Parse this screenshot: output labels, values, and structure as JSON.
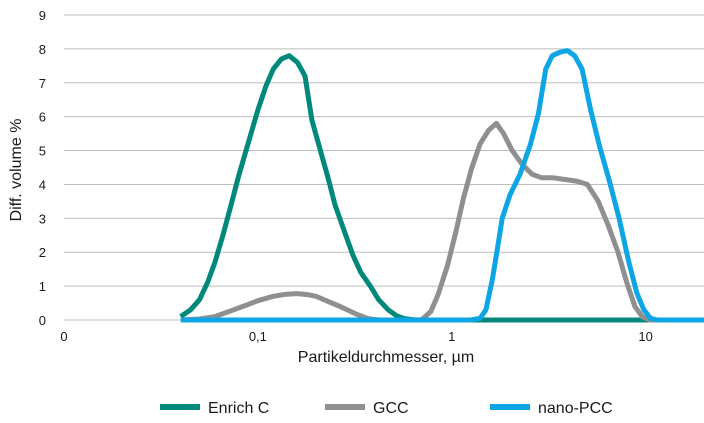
{
  "chart_data": {
    "type": "line",
    "xlabel": "Partikeldurchmesser, µm",
    "ylabel": "Diff. volume %",
    "x_scale": "log",
    "xlim": [
      0.01,
      20
    ],
    "ylim": [
      0,
      9
    ],
    "grid": "horizontal",
    "legend_position": "bottom",
    "x_ticks": [
      {
        "value": 0.01,
        "label": "0"
      },
      {
        "value": 0.1,
        "label": "0,1"
      },
      {
        "value": 1,
        "label": "1"
      },
      {
        "value": 10,
        "label": "10"
      }
    ],
    "y_ticks": [
      {
        "value": 0,
        "label": "0"
      },
      {
        "value": 1,
        "label": "1"
      },
      {
        "value": 2,
        "label": "2"
      },
      {
        "value": 3,
        "label": "3"
      },
      {
        "value": 4,
        "label": "4"
      },
      {
        "value": 5,
        "label": "5"
      },
      {
        "value": 6,
        "label": "6"
      },
      {
        "value": 7,
        "label": "7"
      },
      {
        "value": 8,
        "label": "8"
      },
      {
        "value": 9,
        "label": "9"
      }
    ],
    "series": [
      {
        "name": "Enrich C",
        "color": "#00897b",
        "points": [
          [
            0.04,
            0.1
          ],
          [
            0.045,
            0.3
          ],
          [
            0.05,
            0.6
          ],
          [
            0.055,
            1.1
          ],
          [
            0.06,
            1.7
          ],
          [
            0.066,
            2.5
          ],
          [
            0.072,
            3.3
          ],
          [
            0.08,
            4.3
          ],
          [
            0.09,
            5.3
          ],
          [
            0.1,
            6.2
          ],
          [
            0.11,
            6.9
          ],
          [
            0.12,
            7.4
          ],
          [
            0.132,
            7.7
          ],
          [
            0.145,
            7.8
          ],
          [
            0.16,
            7.6
          ],
          [
            0.175,
            7.2
          ],
          [
            0.19,
            5.9
          ],
          [
            0.21,
            5.0
          ],
          [
            0.23,
            4.2
          ],
          [
            0.25,
            3.4
          ],
          [
            0.28,
            2.6
          ],
          [
            0.31,
            1.9
          ],
          [
            0.34,
            1.4
          ],
          [
            0.38,
            1.0
          ],
          [
            0.42,
            0.6
          ],
          [
            0.47,
            0.3
          ],
          [
            0.52,
            0.12
          ],
          [
            0.57,
            0.04
          ],
          [
            0.65,
            0
          ],
          [
            0.8,
            0
          ],
          [
            1.0,
            0
          ],
          [
            2.0,
            0
          ],
          [
            5.0,
            0
          ],
          [
            10.0,
            0
          ],
          [
            20.0,
            0
          ]
        ]
      },
      {
        "name": "GCC",
        "color": "#8f8f8f",
        "points": [
          [
            0.04,
            0
          ],
          [
            0.05,
            0.03
          ],
          [
            0.06,
            0.1
          ],
          [
            0.075,
            0.3
          ],
          [
            0.09,
            0.47
          ],
          [
            0.1,
            0.57
          ],
          [
            0.12,
            0.7
          ],
          [
            0.14,
            0.76
          ],
          [
            0.16,
            0.78
          ],
          [
            0.18,
            0.75
          ],
          [
            0.2,
            0.7
          ],
          [
            0.23,
            0.55
          ],
          [
            0.27,
            0.38
          ],
          [
            0.32,
            0.18
          ],
          [
            0.37,
            0.04
          ],
          [
            0.42,
            0
          ],
          [
            0.6,
            0
          ],
          [
            0.7,
            0.01
          ],
          [
            0.78,
            0.25
          ],
          [
            0.85,
            0.75
          ],
          [
            0.95,
            1.6
          ],
          [
            1.05,
            2.6
          ],
          [
            1.15,
            3.6
          ],
          [
            1.27,
            4.5
          ],
          [
            1.4,
            5.2
          ],
          [
            1.55,
            5.6
          ],
          [
            1.7,
            5.8
          ],
          [
            1.85,
            5.5
          ],
          [
            2.05,
            5.0
          ],
          [
            2.3,
            4.6
          ],
          [
            2.6,
            4.3
          ],
          [
            2.9,
            4.2
          ],
          [
            3.3,
            4.2
          ],
          [
            3.8,
            4.15
          ],
          [
            4.4,
            4.1
          ],
          [
            5.0,
            4.0
          ],
          [
            5.7,
            3.5
          ],
          [
            6.4,
            2.8
          ],
          [
            7.2,
            2.0
          ],
          [
            8.0,
            1.1
          ],
          [
            8.8,
            0.4
          ],
          [
            9.6,
            0.1
          ],
          [
            10.5,
            0
          ],
          [
            20.0,
            0
          ]
        ]
      },
      {
        "name": "nano-PCC",
        "color": "#0ea5e4",
        "points": [
          [
            0.04,
            0
          ],
          [
            0.5,
            0
          ],
          [
            1.0,
            0
          ],
          [
            1.25,
            0
          ],
          [
            1.4,
            0.05
          ],
          [
            1.5,
            0.3
          ],
          [
            1.62,
            1.2
          ],
          [
            1.72,
            2.1
          ],
          [
            1.82,
            3.0
          ],
          [
            2.0,
            3.7
          ],
          [
            2.25,
            4.3
          ],
          [
            2.55,
            5.2
          ],
          [
            2.8,
            6.1
          ],
          [
            3.05,
            7.4
          ],
          [
            3.3,
            7.8
          ],
          [
            3.6,
            7.9
          ],
          [
            3.95,
            7.95
          ],
          [
            4.3,
            7.8
          ],
          [
            4.7,
            7.4
          ],
          [
            5.2,
            6.2
          ],
          [
            5.8,
            5.1
          ],
          [
            6.5,
            4.1
          ],
          [
            7.3,
            3.0
          ],
          [
            8.2,
            1.7
          ],
          [
            9.0,
            0.8
          ],
          [
            9.8,
            0.3
          ],
          [
            10.6,
            0.05
          ],
          [
            11.5,
            0
          ],
          [
            20.0,
            0
          ]
        ]
      }
    ]
  }
}
